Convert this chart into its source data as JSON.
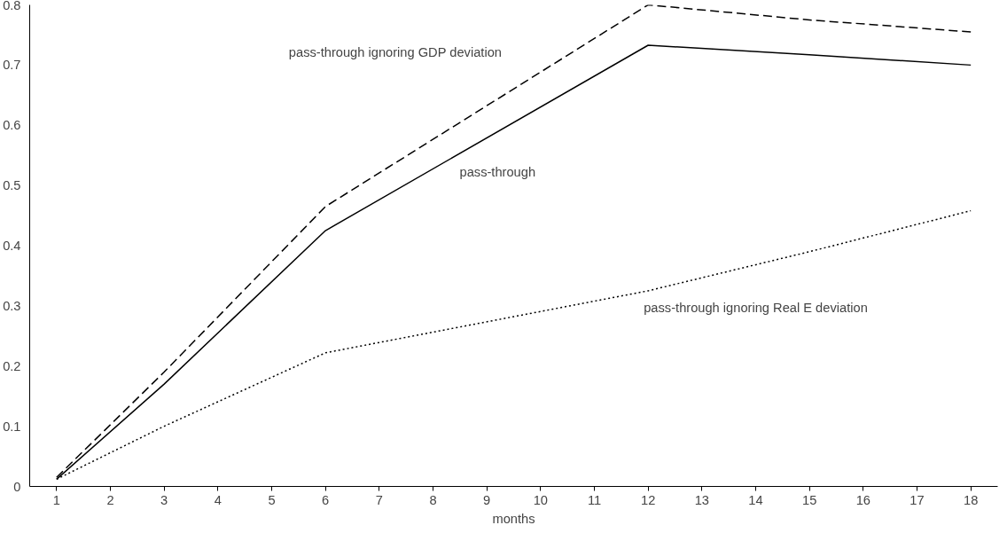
{
  "chart_data": {
    "type": "line",
    "xlabel": "months",
    "xlim": [
      0.5,
      18.5
    ],
    "xticks": [
      1,
      2,
      3,
      4,
      5,
      6,
      7,
      8,
      9,
      10,
      11,
      12,
      13,
      14,
      15,
      16,
      17,
      18
    ],
    "ylim": [
      0,
      0.8
    ],
    "yticks": [
      0,
      0.1,
      0.2,
      0.3,
      0.4,
      0.5,
      0.6,
      0.7,
      0.8
    ],
    "grid": false,
    "legend": false,
    "marker": "none",
    "series": [
      {
        "name": "pass-through",
        "color": "#000000",
        "line_style": "solid",
        "x": [
          1,
          3,
          6,
          12,
          15,
          18
        ],
        "values": [
          0.012,
          0.17,
          0.425,
          0.733,
          0.717,
          0.7
        ]
      },
      {
        "name": "pass-through ignoring GDP deviation",
        "color": "#000000",
        "line_style": "dashed",
        "x": [
          1,
          3,
          6,
          12,
          15,
          18
        ],
        "values": [
          0.015,
          0.19,
          0.465,
          0.8,
          0.775,
          0.755
        ]
      },
      {
        "name": "pass-through ignoring Real E deviation",
        "color": "#000000",
        "line_style": "dotted",
        "x": [
          1,
          3,
          6,
          12,
          15,
          18
        ],
        "values": [
          0.012,
          0.1,
          0.222,
          0.325,
          0.39,
          0.458
        ]
      }
    ]
  }
}
